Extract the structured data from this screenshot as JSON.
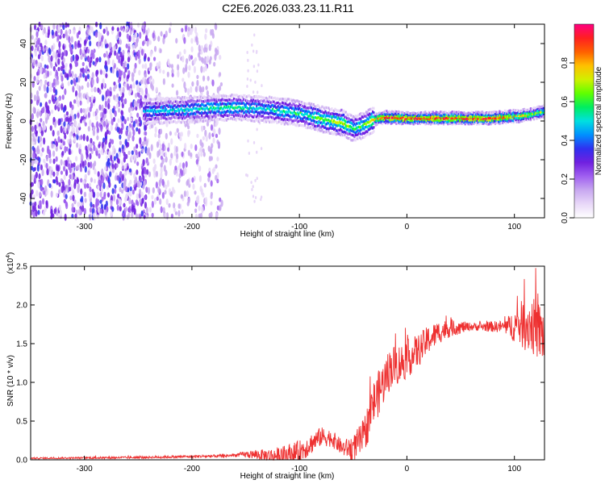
{
  "title": "C2E6.2026.033.23.11.R11",
  "chart_data": [
    {
      "type": "heatmap",
      "name": "spectrogram",
      "xlabel": "Height of straight line (km)",
      "ylabel": "Frequency (Hz)",
      "xlim": [
        -350,
        128
      ],
      "ylim": [
        -50,
        50
      ],
      "xticks": [
        -300,
        -200,
        -100,
        0,
        100
      ],
      "yticks": [
        -40,
        -20,
        0,
        20,
        40
      ],
      "colorbar": {
        "label": "Normalized spectral amplitude",
        "range": [
          0,
          1
        ],
        "ticks": [
          "0.0",
          "0.2",
          "0.4",
          "0.6",
          "0.8"
        ],
        "tick_values": [
          0,
          0.2,
          0.4,
          0.6,
          0.8
        ],
        "colors": [
          "#ffffff",
          "#e8d8f8",
          "#c8a8f0",
          "#a060f0",
          "#7020e0",
          "#3030f0",
          "#0090ff",
          "#00e0e0",
          "#00ee60",
          "#60ff00",
          "#d0f000",
          "#ffc000",
          "#ff6000",
          "#ff2020",
          "#ff0080"
        ]
      },
      "signal_track": {
        "description_free": true,
        "x": [
          -240,
          -200,
          -160,
          -130,
          -100,
          -80,
          -60,
          -50,
          -40,
          -30,
          -20,
          0,
          40,
          80,
          110,
          128
        ],
        "freq": [
          5,
          6,
          7,
          6,
          4,
          1,
          -1,
          -4,
          -2,
          1,
          2,
          1.5,
          1.5,
          1.5,
          3,
          5
        ],
        "amplitude": [
          0.45,
          0.5,
          0.55,
          0.5,
          0.55,
          0.6,
          0.7,
          0.55,
          0.6,
          0.8,
          0.9,
          0.92,
          0.93,
          0.92,
          0.7,
          0.6
        ]
      }
    },
    {
      "type": "line",
      "name": "snr",
      "xlabel": "Height of straight line (km)",
      "ylabel": "SNR (10 * v/v)",
      "multiplier_label": "(x10",
      "multiplier_exp": "4",
      "multiplier_close": ")",
      "xlim": [
        -350,
        128
      ],
      "ylim": [
        0,
        2.5
      ],
      "xticks": [
        -300,
        -200,
        -100,
        0,
        100
      ],
      "yticks": [
        "0.0",
        "0.5",
        "1.0",
        "1.5",
        "2.0",
        "2.5"
      ],
      "ytick_values": [
        0,
        0.5,
        1.0,
        1.5,
        2.0,
        2.5
      ],
      "color": "#ee3030",
      "trend": {
        "x": [
          -350,
          -250,
          -170,
          -150,
          -120,
          -100,
          -90,
          -80,
          -70,
          -60,
          -50,
          -40,
          -32,
          -25,
          -15,
          -5,
          0,
          10,
          20,
          30,
          40,
          60,
          80,
          95,
          105,
          115,
          128
        ],
        "y": [
          0.02,
          0.03,
          0.05,
          0.07,
          0.05,
          0.1,
          0.2,
          0.3,
          0.28,
          0.15,
          0.15,
          0.3,
          0.7,
          0.9,
          1.2,
          1.25,
          1.3,
          1.4,
          1.55,
          1.65,
          1.7,
          1.72,
          1.72,
          1.72,
          1.75,
          1.75,
          1.6
        ]
      },
      "noise": {
        "x": [
          -350,
          -160,
          -100,
          -60,
          -30,
          0,
          60,
          90,
          110,
          128
        ],
        "amp": [
          0.01,
          0.02,
          0.15,
          0.1,
          0.3,
          0.25,
          0.05,
          0.08,
          0.35,
          0.4
        ]
      }
    }
  ]
}
